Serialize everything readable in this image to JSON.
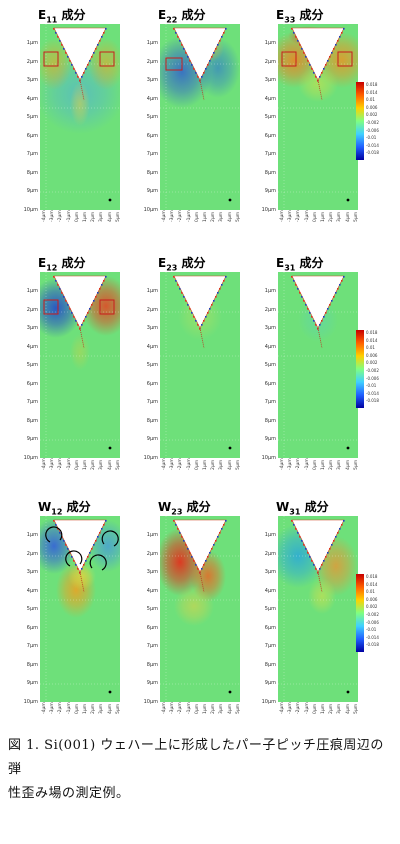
{
  "panels": [
    {
      "id": "e11",
      "sym": "E",
      "sub": "11",
      "suffix": " 成分",
      "pattern": "e11"
    },
    {
      "id": "e22",
      "sym": "E",
      "sub": "22",
      "suffix": " 成分",
      "pattern": "e22"
    },
    {
      "id": "e33",
      "sym": "E",
      "sub": "33",
      "suffix": " 成分",
      "pattern": "e33"
    },
    {
      "id": "e12",
      "sym": "E",
      "sub": "12",
      "suffix": " 成分",
      "pattern": "e12"
    },
    {
      "id": "e23",
      "sym": "E",
      "sub": "23",
      "suffix": " 成分",
      "pattern": "e23"
    },
    {
      "id": "e31",
      "sym": "E",
      "sub": "31",
      "suffix": " 成分",
      "pattern": "e31"
    },
    {
      "id": "w12",
      "sym": "W",
      "sub": "12",
      "suffix": " 成分",
      "pattern": "w12"
    },
    {
      "id": "w23",
      "sym": "W",
      "sub": "23",
      "suffix": " 成分",
      "pattern": "w23"
    },
    {
      "id": "w31",
      "sym": "W",
      "sub": "31",
      "suffix": " 成分",
      "pattern": "w31"
    }
  ],
  "y_ticks": [
    "1μm",
    "2μm",
    "3μm",
    "4μm",
    "5μm",
    "6μm",
    "7μm",
    "8μm",
    "9μm",
    "10μm"
  ],
  "x_ticks": [
    "-4μm",
    "-3μm",
    "-2μm",
    "-1μm",
    "0μm",
    "1μm",
    "2μm",
    "3μm",
    "4μm",
    "5μm"
  ],
  "colorbar_labels": [
    "0.018",
    "0.014",
    "0.01",
    "0.006",
    "0.002",
    "-0.002",
    "-0.006",
    "-0.01",
    "-0.014",
    "-0.018"
  ],
  "colors": {
    "background_field": "#6ee07a",
    "positive": "#e81e1e",
    "negative": "#1f3fd0",
    "indent": "#ffffff",
    "roi_box": "#c81c1c"
  },
  "caption": {
    "line1": "図 1. Si(001) ウェハー上に形成したパー子ピッチ圧痕周辺の弾",
    "line2": "性歪み場の測定例。"
  }
}
